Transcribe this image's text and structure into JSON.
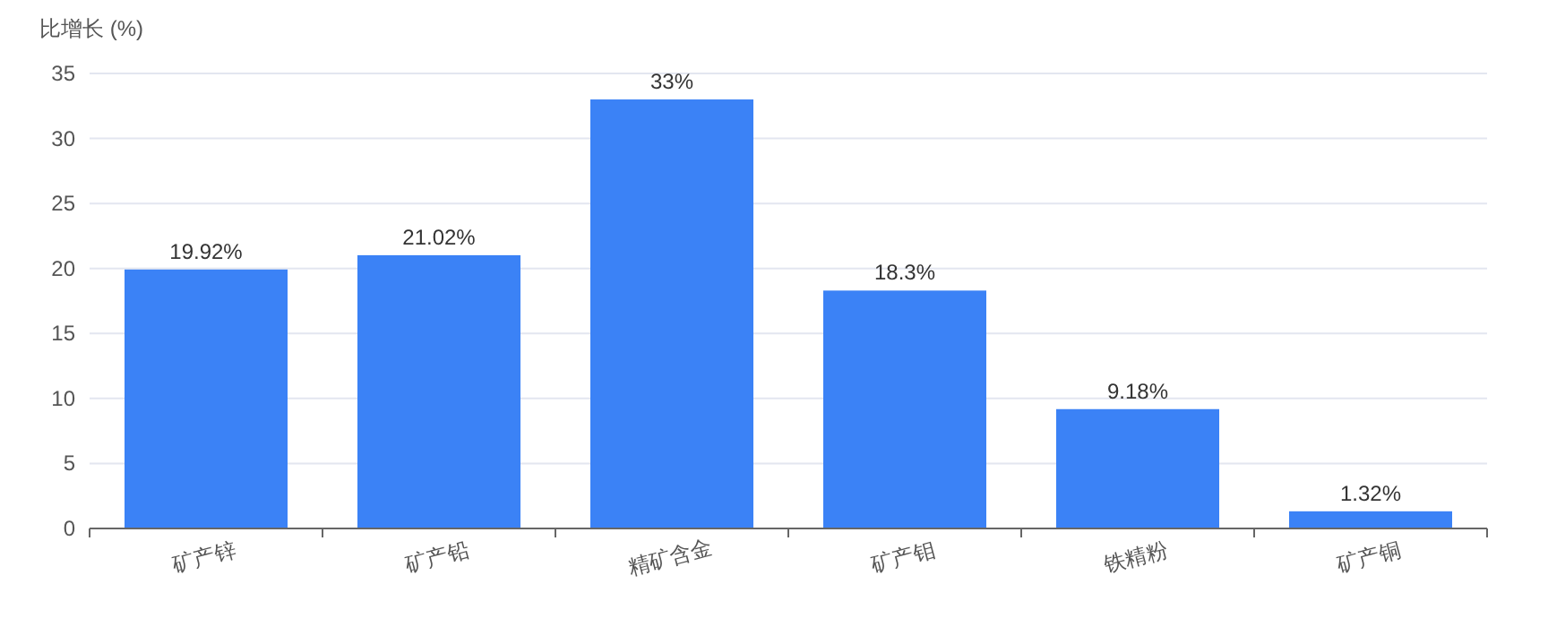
{
  "chart_data": {
    "type": "bar",
    "ylabel": "比增长 (%)",
    "categories": [
      "矿产锌",
      "矿产铅",
      "精矿含金",
      "矿产钼",
      "铁精粉",
      "矿产铜"
    ],
    "values": [
      19.92,
      21.02,
      33,
      18.3,
      9.18,
      1.32
    ],
    "value_labels": [
      "19.92%",
      "21.02%",
      "33%",
      "18.3%",
      "9.18%",
      "1.32%"
    ],
    "color": "#3b82f6",
    "ylim": [
      0,
      35
    ],
    "yticks": [
      0,
      5,
      10,
      15,
      20,
      25,
      30,
      35
    ],
    "grid": "y"
  }
}
